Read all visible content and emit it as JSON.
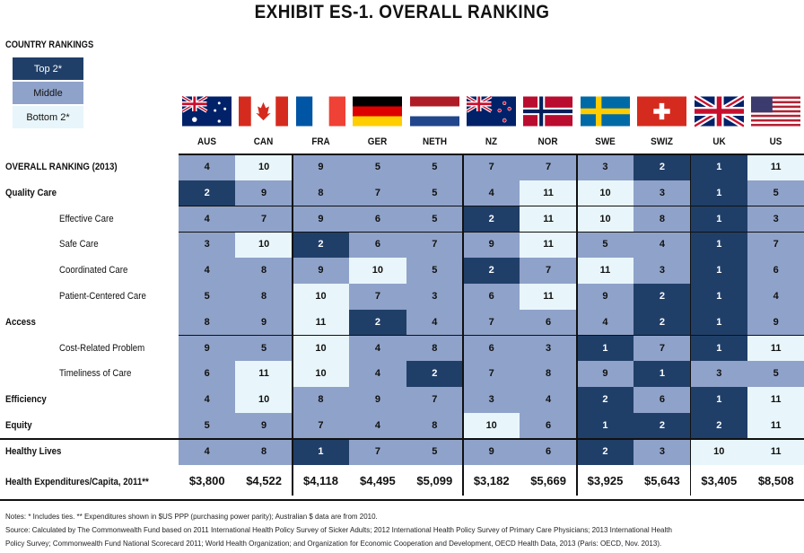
{
  "title": "EXHIBIT ES-1. OVERALL RANKING",
  "legend": {
    "title": "COUNTRY RANKINGS",
    "items": [
      {
        "label": "Top 2*",
        "class": "top"
      },
      {
        "label": "Middle",
        "class": "mid"
      },
      {
        "label": "Bottom 2*",
        "class": "bot"
      }
    ]
  },
  "colors": {
    "top": "#203f68",
    "middle": "#8fa2c9",
    "bottom": "#e8f6fb"
  },
  "countries": [
    "AUS",
    "CAN",
    "FRA",
    "GER",
    "NETH",
    "NZ",
    "NOR",
    "SWE",
    "SWIZ",
    "UK",
    "US"
  ],
  "rows": [
    {
      "label": "OVERALL RANKING (2013)",
      "level": "main",
      "values": [
        4,
        10,
        9,
        5,
        5,
        7,
        7,
        3,
        2,
        1,
        11
      ]
    },
    {
      "label": "Quality Care",
      "level": "main",
      "values": [
        2,
        9,
        8,
        7,
        5,
        4,
        11,
        10,
        3,
        1,
        5
      ]
    },
    {
      "label": "Effective Care",
      "level": "sub",
      "values": [
        4,
        7,
        9,
        6,
        5,
        2,
        11,
        10,
        8,
        1,
        3
      ]
    },
    {
      "label": "Safe Care",
      "level": "sub",
      "values": [
        3,
        10,
        2,
        6,
        7,
        9,
        11,
        5,
        4,
        1,
        7
      ]
    },
    {
      "label": "Coordinated Care",
      "level": "sub",
      "values": [
        4,
        8,
        9,
        10,
        5,
        2,
        7,
        11,
        3,
        1,
        6
      ]
    },
    {
      "label": "Patient-Centered Care",
      "level": "sub",
      "values": [
        5,
        8,
        10,
        7,
        3,
        6,
        11,
        9,
        2,
        1,
        4
      ]
    },
    {
      "label": "Access",
      "level": "main",
      "values": [
        8,
        9,
        11,
        2,
        4,
        7,
        6,
        4,
        2,
        1,
        9
      ]
    },
    {
      "label": "Cost-Related Problem",
      "level": "sub",
      "values": [
        9,
        5,
        10,
        4,
        8,
        6,
        3,
        1,
        7,
        1,
        11
      ]
    },
    {
      "label": "Timeliness of Care",
      "level": "sub",
      "values": [
        6,
        11,
        10,
        4,
        2,
        7,
        8,
        9,
        1,
        3,
        5
      ]
    },
    {
      "label": "Efficiency",
      "level": "main",
      "values": [
        4,
        10,
        8,
        9,
        7,
        3,
        4,
        2,
        6,
        1,
        11
      ]
    },
    {
      "label": "Equity",
      "level": "main",
      "values": [
        5,
        9,
        7,
        4,
        8,
        10,
        6,
        1,
        2,
        2,
        11
      ]
    },
    {
      "label": "Healthy Lives",
      "level": "main",
      "values": [
        4,
        8,
        1,
        7,
        5,
        9,
        6,
        2,
        3,
        10,
        11
      ]
    }
  ],
  "expenditures": {
    "label": "Health Expenditures/Capita, 2011**",
    "values": [
      "$3,800",
      "$4,522",
      "$4,118",
      "$4,495",
      "$5,099",
      "$3,182",
      "$5,669",
      "$3,925",
      "$5,643",
      "$3,405",
      "$8,508"
    ]
  },
  "notes": [
    "Notes: * Includes ties. ** Expenditures shown in $US PPP (purchasing power parity); Australian $ data are from 2010.",
    "Source: Calculated by The Commonwealth Fund based on 2011 International Health Policy Survey of Sicker Adults; 2012 International Health Policy Survey of Primary Care Physicians; 2013 International Health",
    "Policy Survey; Commonwealth Fund National Scorecard 2011; World Health Organization; and Organization for Economic Cooperation and Development, OECD Health Data, 2013 (Paris: OECD, Nov. 2013)."
  ]
}
